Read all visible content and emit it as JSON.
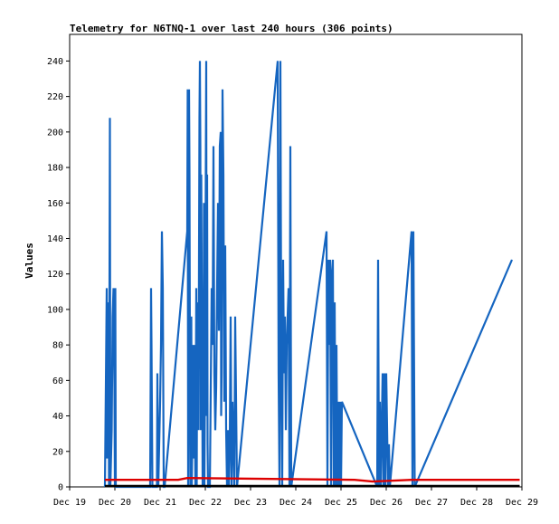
{
  "chart_data": {
    "type": "line",
    "title": "Telemetry for N6TNQ-1 over last 240 hours (306 points)",
    "xlabel": "",
    "ylabel": "Values",
    "xlim": [
      "Dec 19",
      "Dec 29"
    ],
    "ylim": [
      0,
      255
    ],
    "x_ticks": [
      "Dec 19",
      "Dec 20",
      "Dec 21",
      "Dec 22",
      "Dec 23",
      "Dec 24",
      "Dec 25",
      "Dec 26",
      "Dec 27",
      "Dec 28",
      "Dec 29"
    ],
    "y_ticks": [
      0,
      20,
      40,
      60,
      80,
      100,
      120,
      140,
      160,
      180,
      200,
      220,
      240
    ],
    "grid": false,
    "legend": "none",
    "colors": {
      "blue": "#1565c0",
      "red": "#dd0000",
      "black": "#000000"
    },
    "series": [
      {
        "color": "#1565c0",
        "x_unit": "days since Dec 19",
        "points": [
          [
            0.78,
            0
          ],
          [
            0.8,
            56
          ],
          [
            0.82,
            112
          ],
          [
            0.83,
            16
          ],
          [
            0.85,
            64
          ],
          [
            0.86,
            104
          ],
          [
            0.87,
            0
          ],
          [
            0.89,
            208
          ],
          [
            0.9,
            0
          ],
          [
            0.93,
            32
          ],
          [
            0.95,
            96
          ],
          [
            0.97,
            112
          ],
          [
            0.99,
            56
          ],
          [
            1.0,
            0
          ],
          [
            1.01,
            112
          ],
          [
            1.02,
            0
          ],
          [
            1.78,
            0
          ],
          [
            1.79,
            56
          ],
          [
            1.8,
            112
          ],
          [
            1.81,
            80
          ],
          [
            1.83,
            0
          ],
          [
            1.93,
            0
          ],
          [
            1.94,
            64
          ],
          [
            1.95,
            32
          ],
          [
            1.96,
            0
          ],
          [
            2.0,
            48
          ],
          [
            2.02,
            80
          ],
          [
            2.04,
            144
          ],
          [
            2.06,
            112
          ],
          [
            2.08,
            0
          ],
          [
            2.1,
            0
          ],
          [
            2.6,
            144
          ],
          [
            2.61,
            224
          ],
          [
            2.62,
            0
          ],
          [
            2.64,
            224
          ],
          [
            2.65,
            176
          ],
          [
            2.66,
            64
          ],
          [
            2.67,
            0
          ],
          [
            2.69,
            96
          ],
          [
            2.7,
            0
          ],
          [
            2.72,
            40
          ],
          [
            2.73,
            80
          ],
          [
            2.74,
            16
          ],
          [
            2.76,
            80
          ],
          [
            2.78,
            0
          ],
          [
            2.8,
            112
          ],
          [
            2.81,
            0
          ],
          [
            2.82,
            104
          ],
          [
            2.84,
            56
          ],
          [
            2.85,
            32
          ],
          [
            2.86,
            128
          ],
          [
            2.87,
            208
          ],
          [
            2.88,
            240
          ],
          [
            2.89,
            192
          ],
          [
            2.9,
            32
          ],
          [
            2.91,
            176
          ],
          [
            2.92,
            120
          ],
          [
            2.93,
            80
          ],
          [
            2.94,
            0
          ],
          [
            2.96,
            24
          ],
          [
            2.97,
            160
          ],
          [
            2.98,
            0
          ],
          [
            3.0,
            96
          ],
          [
            3.01,
            176
          ],
          [
            3.02,
            240
          ],
          [
            3.03,
            40
          ],
          [
            3.04,
            176
          ],
          [
            3.05,
            24
          ],
          [
            3.06,
            0
          ],
          [
            3.1,
            0
          ],
          [
            3.12,
            56
          ],
          [
            3.14,
            112
          ],
          [
            3.16,
            80
          ],
          [
            3.18,
            192
          ],
          [
            3.2,
            64
          ],
          [
            3.22,
            32
          ],
          [
            3.24,
            56
          ],
          [
            3.26,
            112
          ],
          [
            3.28,
            160
          ],
          [
            3.3,
            88
          ],
          [
            3.32,
            192
          ],
          [
            3.34,
            200
          ],
          [
            3.35,
            40
          ],
          [
            3.36,
            64
          ],
          [
            3.38,
            224
          ],
          [
            3.4,
            176
          ],
          [
            3.42,
            48
          ],
          [
            3.44,
            136
          ],
          [
            3.46,
            32
          ],
          [
            3.48,
            0
          ],
          [
            3.5,
            32
          ],
          [
            3.52,
            0
          ],
          [
            3.54,
            24
          ],
          [
            3.56,
            96
          ],
          [
            3.58,
            0
          ],
          [
            3.6,
            48
          ],
          [
            3.62,
            24
          ],
          [
            3.64,
            0
          ],
          [
            3.66,
            96
          ],
          [
            3.68,
            48
          ],
          [
            3.7,
            0
          ],
          [
            4.6,
            240
          ],
          [
            4.62,
            64
          ],
          [
            4.64,
            0
          ],
          [
            4.66,
            240
          ],
          [
            4.68,
            64
          ],
          [
            4.7,
            0
          ],
          [
            4.72,
            128
          ],
          [
            4.74,
            64
          ],
          [
            4.76,
            96
          ],
          [
            4.78,
            32
          ],
          [
            4.8,
            80
          ],
          [
            4.82,
            96
          ],
          [
            4.84,
            112
          ],
          [
            4.86,
            0
          ],
          [
            4.88,
            192
          ],
          [
            4.9,
            0
          ],
          [
            5.68,
            144
          ],
          [
            5.7,
            0
          ],
          [
            5.72,
            128
          ],
          [
            5.74,
            80
          ],
          [
            5.76,
            128
          ],
          [
            5.78,
            0
          ],
          [
            5.8,
            120
          ],
          [
            5.82,
            128
          ],
          [
            5.84,
            0
          ],
          [
            5.86,
            104
          ],
          [
            5.88,
            0
          ],
          [
            5.9,
            80
          ],
          [
            5.92,
            0
          ],
          [
            5.94,
            48
          ],
          [
            5.96,
            0
          ],
          [
            5.98,
            48
          ],
          [
            6.0,
            0
          ],
          [
            6.02,
            48
          ],
          [
            6.8,
            0
          ],
          [
            6.82,
            128
          ],
          [
            6.84,
            0
          ],
          [
            6.86,
            48
          ],
          [
            6.88,
            0
          ],
          [
            6.9,
            32
          ],
          [
            6.92,
            64
          ],
          [
            6.94,
            0
          ],
          [
            6.96,
            64
          ],
          [
            6.98,
            0
          ],
          [
            7.0,
            64
          ],
          [
            7.02,
            32
          ],
          [
            7.04,
            0
          ],
          [
            7.06,
            24
          ],
          [
            7.08,
            0
          ],
          [
            7.56,
            144
          ],
          [
            7.58,
            0
          ],
          [
            7.6,
            144
          ],
          [
            7.63,
            0
          ],
          [
            9.78,
            128
          ]
        ]
      },
      {
        "color": "#dd0000",
        "x_unit": "days since Dec 19",
        "points": [
          [
            0.78,
            4
          ],
          [
            2.4,
            4
          ],
          [
            2.6,
            5
          ],
          [
            6.3,
            4
          ],
          [
            6.7,
            3
          ],
          [
            7.56,
            4
          ],
          [
            9.95,
            4
          ]
        ]
      },
      {
        "color": "#000000",
        "x_unit": "days since Dec 19",
        "points": [
          [
            0.78,
            0.5
          ],
          [
            9.95,
            0.5
          ]
        ]
      }
    ]
  }
}
